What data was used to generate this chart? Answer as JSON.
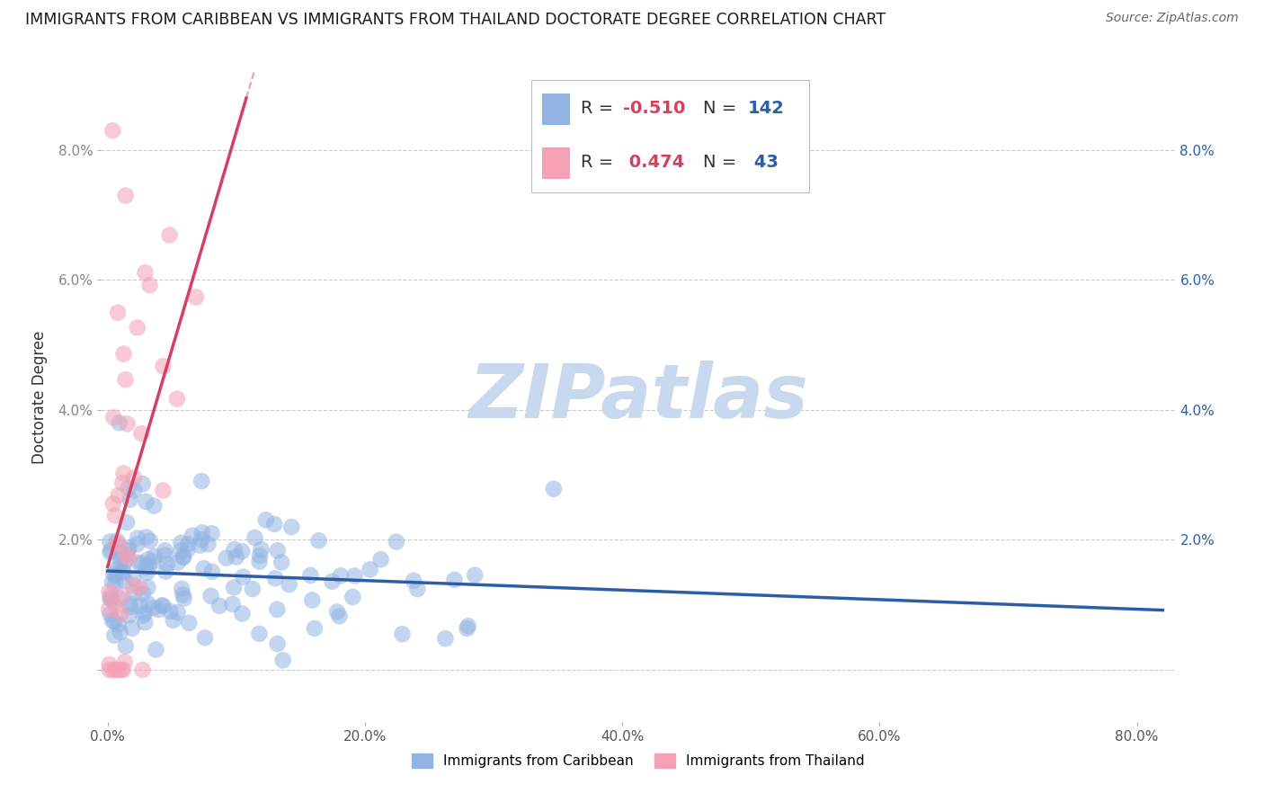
{
  "title": "IMMIGRANTS FROM CARIBBEAN VS IMMIGRANTS FROM THAILAND DOCTORATE DEGREE CORRELATION CHART",
  "source": "Source: ZipAtlas.com",
  "ylabel": "Doctorate Degree",
  "xlabel_ticks": [
    "0.0%",
    "20.0%",
    "40.0%",
    "60.0%",
    "80.0%"
  ],
  "xlabel_vals": [
    0.0,
    0.2,
    0.4,
    0.6,
    0.8
  ],
  "ylabel_ticks_left": [
    "",
    "2.0%",
    "4.0%",
    "6.0%",
    "8.0%"
  ],
  "ylabel_ticks_right": [
    "",
    "2.0%",
    "4.0%",
    "6.0%",
    "8.0%"
  ],
  "ylabel_vals": [
    0.0,
    0.02,
    0.04,
    0.06,
    0.08
  ],
  "xlim": [
    -0.005,
    0.83
  ],
  "ylim": [
    -0.008,
    0.092
  ],
  "legend_label1": "Immigrants from Caribbean",
  "legend_label2": "Immigrants from Thailand",
  "R1": -0.51,
  "N1": 142,
  "R2": 0.474,
  "N2": 43,
  "color_blue": "#92B4E3",
  "color_pink": "#F4A0B5",
  "color_blue_line": "#2B5EA7",
  "color_pink_line": "#D44060",
  "title_color": "#1a1a1a",
  "source_color": "#666666",
  "watermark": "ZIPatlas",
  "watermark_color": "#C8D8EE",
  "legend_R_color": "#D44060",
  "legend_N_color": "#2B5EA7",
  "grid_color": "#CCCCCC"
}
